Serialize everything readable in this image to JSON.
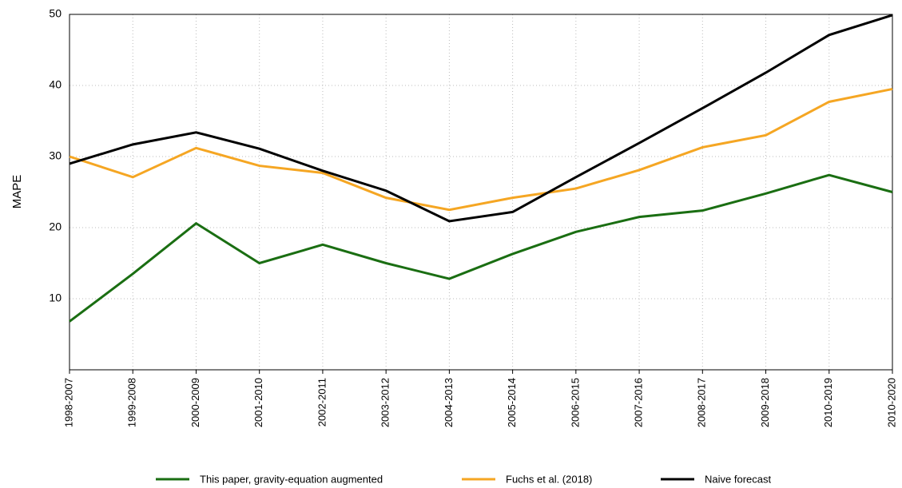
{
  "chart_data": {
    "type": "line",
    "y_label": "MAPE",
    "categories": [
      "1998-2007",
      "1999-2008",
      "2000-2009",
      "2001-2010",
      "2002-2011",
      "2003-2012",
      "2004-2013",
      "2005-2014",
      "2006-2015",
      "2007-2016",
      "2008-2017",
      "2009-2018",
      "2010-2019",
      "2010-2020"
    ],
    "series": [
      {
        "name": "This paper, gravity-equation augmented",
        "color": "#1a6e12",
        "values": [
          6.8,
          13.5,
          20.6,
          15.0,
          17.6,
          15.0,
          12.8,
          16.3,
          19.4,
          21.5,
          22.4,
          24.8,
          27.4,
          25.0
        ]
      },
      {
        "name": "Fuchs et al. (2018)",
        "color": "#f5a623",
        "values": [
          30.0,
          27.1,
          31.2,
          28.7,
          27.7,
          24.2,
          22.5,
          24.2,
          25.5,
          28.1,
          31.3,
          33.0,
          37.7,
          39.5
        ]
      },
      {
        "name": "Naive forecast",
        "color": "#000000",
        "values": [
          29.0,
          31.7,
          33.4,
          31.1,
          28.0,
          25.2,
          20.9,
          22.2,
          27.1,
          31.9,
          36.8,
          41.8,
          47.1,
          49.9
        ]
      }
    ],
    "ylim": [
      0,
      50
    ],
    "yticks": [
      10,
      20,
      30,
      40,
      50
    ],
    "grid": true,
    "legend": "bottom"
  }
}
